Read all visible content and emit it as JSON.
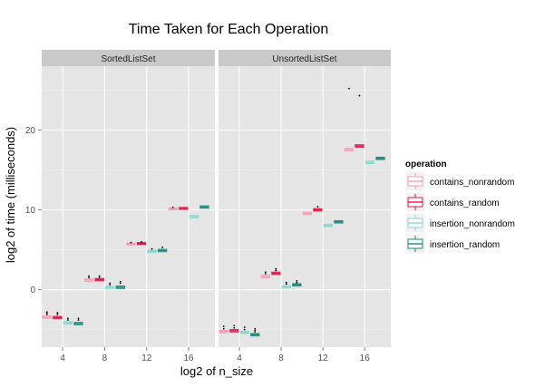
{
  "chart_data": {
    "type": "box",
    "title": "Time Taken for Each Operation",
    "xlabel": "log2 of n_size",
    "ylabel": "log2 of time (milliseconds)",
    "x_ticks": [
      4,
      8,
      12,
      16
    ],
    "y_ticks": [
      0,
      10,
      20
    ],
    "xlim": [
      2,
      18.5
    ],
    "ylim": [
      -7.2,
      28
    ],
    "legend": {
      "title": "operation",
      "position": "right"
    },
    "colors": {
      "contains_nonrandom": "#f79db3",
      "contains_random": "#e5154a",
      "insertion_nonrandom": "#8ad8cf",
      "insertion_random": "#1f8b7e",
      "panel_bg": "#e5e5e5",
      "strip_bg": "#c9c9c9",
      "grid_major": "#ffffff",
      "grid_minor": "#f2f2f2"
    },
    "facets": [
      {
        "name": "SortedListSet",
        "series": [
          {
            "name": "contains_nonrandom",
            "x": [
              4,
              8,
              12,
              16
            ],
            "q1": [
              -3.6,
              1.05,
              5.6,
              10.0
            ],
            "median": [
              -3.45,
              1.2,
              5.72,
              10.12
            ],
            "q3": [
              -3.3,
              1.35,
              5.85,
              10.25
            ],
            "outliers": [
              [
                -3.1,
                -2.9,
                -2.8
              ],
              [
                1.5,
                1.7
              ],
              [
                5.9
              ],
              [
                10.3
              ]
            ]
          },
          {
            "name": "contains_random",
            "x": [
              4,
              8,
              12,
              16
            ],
            "q1": [
              -3.65,
              1.1,
              5.65,
              10.05
            ],
            "median": [
              -3.5,
              1.25,
              5.78,
              10.18
            ],
            "q3": [
              -3.35,
              1.4,
              5.9,
              10.3
            ],
            "outliers": [
              [
                -3.1,
                -2.9
              ],
              [
                1.5,
                1.7
              ],
              [
                6.0
              ],
              []
            ]
          },
          {
            "name": "insertion_nonrandom",
            "x": [
              4,
              8,
              12,
              16
            ],
            "q1": [
              -4.3,
              0.1,
              4.65,
              9.0
            ],
            "median": [
              -4.15,
              0.25,
              4.8,
              9.15
            ],
            "q3": [
              -4.0,
              0.4,
              4.95,
              9.3
            ],
            "outliers": [
              [
                -3.8,
                -3.6
              ],
              [
                0.6,
                0.8
              ],
              [
                5.1
              ],
              []
            ]
          },
          {
            "name": "insertion_random",
            "x": [
              4,
              8,
              12,
              16
            ],
            "q1": [
              -4.4,
              0.15,
              4.75,
              10.2
            ],
            "median": [
              -4.25,
              0.3,
              4.9,
              10.35
            ],
            "q3": [
              -4.1,
              0.45,
              5.05,
              10.5
            ],
            "outliers": [
              [
                -3.8,
                -3.6
              ],
              [
                0.8,
                1.0
              ],
              [
                5.3
              ],
              []
            ]
          }
        ]
      },
      {
        "name": "UnsortedListSet",
        "series": [
          {
            "name": "contains_nonrandom",
            "x": [
              4,
              8,
              12,
              16
            ],
            "q1": [
              -5.4,
              1.5,
              9.4,
              17.4
            ],
            "median": [
              -5.25,
              1.65,
              9.55,
              17.55
            ],
            "q3": [
              -5.1,
              1.8,
              9.7,
              17.7
            ],
            "outliers": [
              [
                -4.9,
                -4.6
              ],
              [
                2.0,
                2.2
              ],
              [],
              [
                25.2
              ]
            ]
          },
          {
            "name": "contains_random",
            "x": [
              4,
              8,
              12,
              16
            ],
            "q1": [
              -5.3,
              1.9,
              9.85,
              17.85
            ],
            "median": [
              -5.15,
              2.05,
              10.0,
              18.0
            ],
            "q3": [
              -5.0,
              2.2,
              10.15,
              18.15
            ],
            "outliers": [
              [
                -4.8,
                -4.5
              ],
              [
                2.4,
                2.6
              ],
              [
                10.4
              ],
              [
                24.3
              ]
            ]
          },
          {
            "name": "insertion_nonrandom",
            "x": [
              4,
              8,
              12,
              16
            ],
            "q1": [
              -5.5,
              0.2,
              7.9,
              15.8
            ],
            "median": [
              -5.35,
              0.35,
              8.05,
              15.95
            ],
            "q3": [
              -5.2,
              0.5,
              8.2,
              16.1
            ],
            "outliers": [
              [
                -5.0,
                -4.7
              ],
              [
                0.7,
                0.9
              ],
              [],
              []
            ]
          },
          {
            "name": "insertion_random",
            "x": [
              4,
              8,
              12,
              16
            ],
            "q1": [
              -5.8,
              0.45,
              8.35,
              16.3
            ],
            "median": [
              -5.65,
              0.6,
              8.5,
              16.45
            ],
            "q3": [
              -5.5,
              0.75,
              8.65,
              16.6
            ],
            "outliers": [
              [
                -5.3,
                -5.1,
                -4.9
              ],
              [
                0.9,
                1.1
              ],
              [],
              []
            ]
          }
        ]
      }
    ]
  }
}
